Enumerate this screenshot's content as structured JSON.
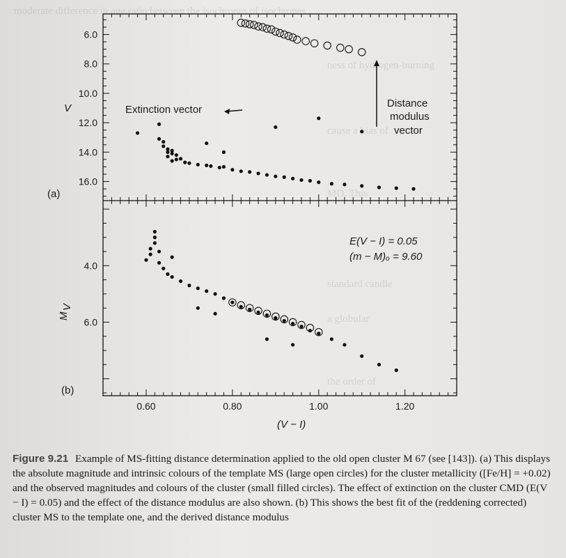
{
  "panel_a": {
    "label": "(a)",
    "y_axis_label": "V",
    "y_ticks": [
      "6.0",
      "8.0",
      "10.0",
      "12.0",
      "14.0",
      "16.0"
    ],
    "extinction_label": "Extinction vector",
    "distance_label": [
      "Distance",
      "modulus",
      "vector"
    ]
  },
  "panel_b": {
    "label": "(b)",
    "y_axis_label": "M",
    "y_axis_sub": "V",
    "y_ticks": [
      "4.0",
      "6.0"
    ],
    "annotation_1": "E(V − I) = 0.05",
    "annotation_2": "(m − M)ₒ = 9.60"
  },
  "x_axis": {
    "label": "(V − I)",
    "ticks": [
      "0.60",
      "0.80",
      "1.00",
      "1.20"
    ]
  },
  "caption": {
    "figure_label": "Figure 9.21",
    "text": "Example of MS-fitting distance determination applied to the old open cluster M 67 (see [143]). (a) This displays the absolute magnitude and intrinsic colours of the template MS (large open circles) for the cluster metallicity ([Fe/H] = +0.02) and the observed magnitudes and colours of the cluster (small filled circles). The effect of extinction on the cluster CMD (E(V − I) = 0.05) and the effect of the distance modulus are also shown. (b) This shows the best fit of the (reddening corrected) cluster MS to the template one, and the derived distance modulus"
  },
  "chart_data": [
    {
      "type": "scatter",
      "title": "",
      "xlabel": "(V − I)",
      "ylabel": "V",
      "xlim": [
        0.5,
        1.32
      ],
      "ylim": [
        17.3,
        4.6
      ],
      "series": [
        {
          "name": "",
          "marker": "open-circle",
          "points": [
            [
              0.82,
              5.2
            ],
            [
              0.83,
              5.25
            ],
            [
              0.84,
              5.3
            ],
            [
              0.85,
              5.35
            ],
            [
              0.86,
              5.45
            ],
            [
              0.87,
              5.5
            ],
            [
              0.88,
              5.6
            ],
            [
              0.89,
              5.65
            ],
            [
              0.9,
              5.8
            ],
            [
              0.91,
              5.9
            ],
            [
              0.92,
              6.0
            ],
            [
              0.93,
              6.1
            ],
            [
              0.94,
              6.2
            ],
            [
              0.95,
              6.35
            ],
            [
              0.97,
              6.45
            ],
            [
              0.99,
              6.6
            ],
            [
              1.02,
              6.75
            ],
            [
              1.05,
              6.9
            ],
            [
              1.07,
              7.0
            ],
            [
              1.1,
              7.2
            ]
          ]
        },
        {
          "name": "",
          "marker": "filled-circle",
          "points": [
            [
              0.63,
              13.1
            ],
            [
              0.64,
              13.3
            ],
            [
              0.64,
              13.6
            ],
            [
              0.65,
              13.8
            ],
            [
              0.65,
              14.0
            ],
            [
              0.65,
              14.3
            ],
            [
              0.66,
              14.1
            ],
            [
              0.66,
              13.9
            ],
            [
              0.66,
              14.6
            ],
            [
              0.67,
              14.2
            ],
            [
              0.67,
              14.5
            ],
            [
              0.68,
              14.45
            ],
            [
              0.69,
              14.7
            ],
            [
              0.7,
              14.75
            ],
            [
              0.72,
              14.85
            ],
            [
              0.74,
              14.9
            ],
            [
              0.75,
              14.95
            ],
            [
              0.77,
              15.05
            ],
            [
              0.78,
              15.0
            ],
            [
              0.8,
              15.2
            ],
            [
              0.82,
              15.3
            ],
            [
              0.84,
              15.35
            ],
            [
              0.86,
              15.45
            ],
            [
              0.88,
              15.55
            ],
            [
              0.9,
              15.65
            ],
            [
              0.92,
              15.7
            ],
            [
              0.94,
              15.8
            ],
            [
              0.96,
              15.9
            ],
            [
              0.98,
              15.95
            ],
            [
              1.0,
              16.05
            ],
            [
              1.03,
              16.15
            ],
            [
              1.06,
              16.2
            ],
            [
              1.1,
              16.3
            ],
            [
              1.14,
              16.4
            ],
            [
              1.18,
              16.45
            ],
            [
              1.22,
              16.5
            ],
            [
              0.58,
              12.7
            ],
            [
              0.63,
              12.1
            ],
            [
              0.74,
              13.4
            ],
            [
              0.78,
              14.0
            ],
            [
              1.1,
              12.6
            ],
            [
              0.9,
              12.3
            ],
            [
              1.0,
              11.7
            ]
          ]
        }
      ]
    },
    {
      "type": "scatter",
      "title": "",
      "xlabel": "(V − I)",
      "ylabel": "MV",
      "xlim": [
        0.5,
        1.32
      ],
      "ylim": [
        8.6,
        1.7
      ],
      "series": [
        {
          "name": "",
          "marker": "open-circle",
          "points": [
            [
              0.8,
              5.3
            ],
            [
              0.82,
              5.4
            ],
            [
              0.84,
              5.5
            ],
            [
              0.86,
              5.6
            ],
            [
              0.88,
              5.7
            ],
            [
              0.9,
              5.8
            ],
            [
              0.92,
              5.9
            ],
            [
              0.94,
              6.0
            ],
            [
              0.96,
              6.1
            ],
            [
              0.98,
              6.2
            ],
            [
              1.0,
              6.35
            ]
          ]
        },
        {
          "name": "",
          "marker": "filled-circle",
          "points": [
            [
              0.6,
              3.8
            ],
            [
              0.61,
              3.6
            ],
            [
              0.61,
              3.4
            ],
            [
              0.62,
              3.2
            ],
            [
              0.62,
              3.0
            ],
            [
              0.62,
              2.8
            ],
            [
              0.63,
              3.5
            ],
            [
              0.63,
              3.9
            ],
            [
              0.64,
              4.1
            ],
            [
              0.65,
              4.3
            ],
            [
              0.66,
              4.4
            ],
            [
              0.68,
              4.55
            ],
            [
              0.7,
              4.7
            ],
            [
              0.72,
              4.8
            ],
            [
              0.74,
              4.9
            ],
            [
              0.76,
              5.0
            ],
            [
              0.78,
              5.15
            ],
            [
              0.8,
              5.3
            ],
            [
              0.82,
              5.45
            ],
            [
              0.84,
              5.55
            ],
            [
              0.86,
              5.65
            ],
            [
              0.88,
              5.75
            ],
            [
              0.9,
              5.85
            ],
            [
              0.92,
              5.95
            ],
            [
              0.94,
              6.05
            ],
            [
              0.96,
              6.15
            ],
            [
              0.98,
              6.3
            ],
            [
              1.0,
              6.4
            ],
            [
              1.03,
              6.6
            ],
            [
              1.06,
              6.8
            ],
            [
              1.1,
              7.2
            ],
            [
              1.14,
              7.5
            ],
            [
              1.18,
              7.7
            ],
            [
              0.72,
              5.5
            ],
            [
              0.76,
              5.7
            ],
            [
              0.88,
              6.6
            ],
            [
              0.94,
              6.8
            ],
            [
              0.66,
              3.7
            ]
          ]
        }
      ]
    }
  ]
}
